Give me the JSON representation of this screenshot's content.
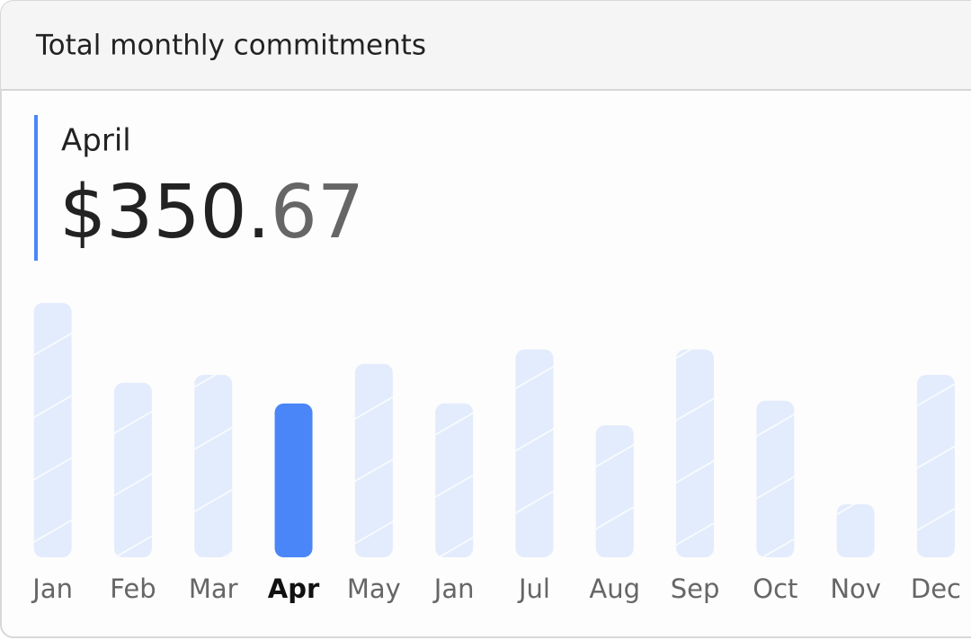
{
  "header": {
    "title": "Total monthly commitments"
  },
  "selected": {
    "label": "April",
    "amount_label": "$350.67"
  },
  "chart_data": {
    "type": "bar",
    "categories": [
      "Jan",
      "Feb",
      "Mar",
      "Apr",
      "May",
      "Jan",
      "Jul",
      "Aug",
      "Sep",
      "Oct",
      "Nov",
      "Dec"
    ],
    "values": [
      580,
      398,
      416,
      350.67,
      441,
      351,
      474,
      301,
      474,
      357,
      121,
      416
    ],
    "color": "#e3ecfc",
    "highlight_color": "#4a86f7",
    "highlight": 3
  }
}
